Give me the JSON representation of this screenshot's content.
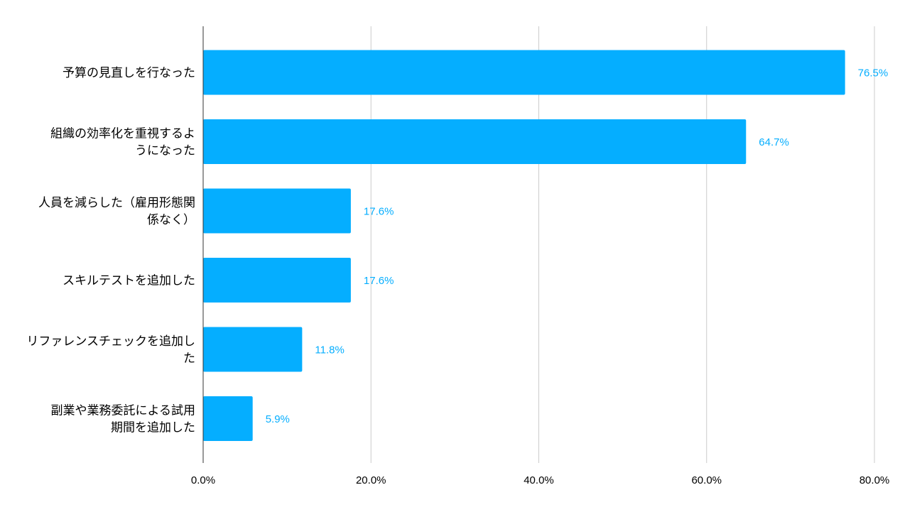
{
  "chart_data": {
    "type": "bar",
    "orientation": "horizontal",
    "title": "",
    "xlabel": "",
    "ylabel": "",
    "categories": [
      "予算の見直しを行なった",
      "組織の効率化を重視するようになった",
      "人員を減らした（雇用形態関係なく）",
      "スキルテストを追加した",
      "リファレンスチェックを追加した",
      "副業や業務委託による試用期間を追加した"
    ],
    "category_lines": [
      [
        "予算の見直しを行なった"
      ],
      [
        "組織の効率化を重視するよ",
        "うになった"
      ],
      [
        "人員を減らした（雇用形態関",
        "係なく）"
      ],
      [
        "スキルテストを追加した"
      ],
      [
        "リファレンスチェックを追加し",
        "た"
      ],
      [
        "副業や業務委託による試用",
        "期間を追加した"
      ]
    ],
    "values": [
      76.5,
      64.7,
      17.6,
      17.6,
      11.8,
      5.9
    ],
    "value_labels": [
      "76.5%",
      "64.7%",
      "17.6%",
      "17.6%",
      "11.8%",
      "5.9%"
    ],
    "xlim": [
      0,
      80
    ],
    "x_ticks": [
      0,
      20,
      40,
      60,
      80
    ],
    "x_tick_labels": [
      "0.0%",
      "20.0%",
      "40.0%",
      "60.0%",
      "80.0%"
    ],
    "grid": true,
    "legend": "none",
    "colors": {
      "bar": "#05AEFF",
      "value_label": "#05AEFF",
      "grid": "#cccccc",
      "axis": "#333333",
      "text": "#000000"
    }
  }
}
